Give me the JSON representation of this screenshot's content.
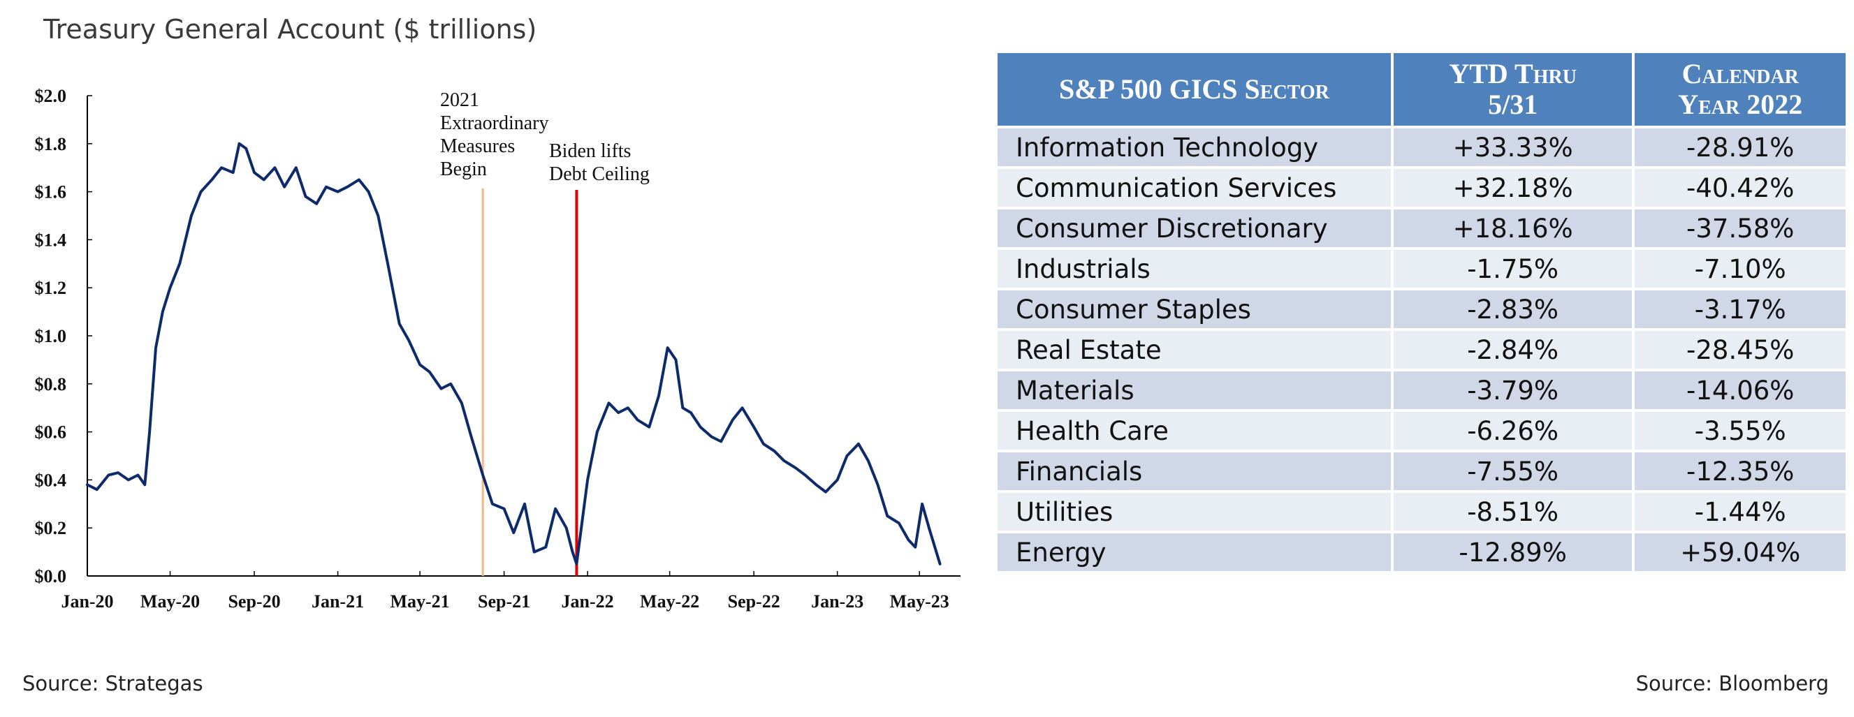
{
  "chart_title": "Treasury General Account ($ trillions)",
  "chart_data": {
    "type": "line",
    "title": "Treasury General Account ($ trillions)",
    "ylim": [
      0,
      2.0
    ],
    "y_ticks": [
      "$0.0",
      "$0.2",
      "$0.4",
      "$0.6",
      "$0.8",
      "$1.0",
      "$1.2",
      "$1.4",
      "$1.6",
      "$1.8",
      "$2.0"
    ],
    "x_ticks": [
      "Jan-20",
      "May-20",
      "Sep-20",
      "Jan-21",
      "May-21",
      "Sep-21",
      "Jan-22",
      "May-22",
      "Sep-22",
      "Jan-23",
      "May-23"
    ],
    "color": "#0d2a6b",
    "series": [
      {
        "x": [
          "2020-01-01",
          "2020-01-15",
          "2020-02-01",
          "2020-02-15",
          "2020-03-01",
          "2020-03-15",
          "2020-03-25",
          "2020-04-01",
          "2020-04-10",
          "2020-04-20",
          "2020-05-01",
          "2020-05-15",
          "2020-06-01",
          "2020-06-15",
          "2020-07-01",
          "2020-07-15",
          "2020-08-01",
          "2020-08-10",
          "2020-08-20",
          "2020-09-01",
          "2020-09-15",
          "2020-10-01",
          "2020-10-15",
          "2020-11-01",
          "2020-11-15",
          "2020-12-01",
          "2020-12-15",
          "2021-01-01",
          "2021-01-15",
          "2021-02-01",
          "2021-02-15",
          "2021-03-01",
          "2021-03-15",
          "2021-04-01",
          "2021-04-15",
          "2021-05-01",
          "2021-05-15",
          "2021-06-01",
          "2021-06-15",
          "2021-07-01",
          "2021-07-15",
          "2021-08-01",
          "2021-08-15",
          "2021-09-01",
          "2021-09-15",
          "2021-10-01",
          "2021-10-15",
          "2021-11-01",
          "2021-11-15",
          "2021-12-01",
          "2021-12-10",
          "2021-12-16",
          "2022-01-01",
          "2022-01-15",
          "2022-02-01",
          "2022-02-15",
          "2022-03-01",
          "2022-03-15",
          "2022-04-01",
          "2022-04-15",
          "2022-04-28",
          "2022-05-10",
          "2022-05-20",
          "2022-06-01",
          "2022-06-15",
          "2022-07-01",
          "2022-07-15",
          "2022-08-01",
          "2022-08-15",
          "2022-09-01",
          "2022-09-15",
          "2022-10-01",
          "2022-10-15",
          "2022-11-01",
          "2022-11-15",
          "2022-12-01",
          "2022-12-15",
          "2023-01-01",
          "2023-01-15",
          "2023-02-01",
          "2023-02-15",
          "2023-03-01",
          "2023-03-15",
          "2023-04-01",
          "2023-04-15",
          "2023-04-25",
          "2023-05-05",
          "2023-05-15",
          "2023-05-31"
        ],
        "y": [
          0.38,
          0.36,
          0.42,
          0.43,
          0.4,
          0.42,
          0.38,
          0.6,
          0.95,
          1.1,
          1.2,
          1.3,
          1.5,
          1.6,
          1.65,
          1.7,
          1.68,
          1.8,
          1.78,
          1.68,
          1.65,
          1.7,
          1.62,
          1.7,
          1.58,
          1.55,
          1.62,
          1.6,
          1.62,
          1.65,
          1.6,
          1.5,
          1.3,
          1.05,
          0.98,
          0.88,
          0.85,
          0.78,
          0.8,
          0.72,
          0.58,
          0.42,
          0.3,
          0.28,
          0.18,
          0.3,
          0.1,
          0.12,
          0.28,
          0.2,
          0.1,
          0.05,
          0.4,
          0.6,
          0.72,
          0.68,
          0.7,
          0.65,
          0.62,
          0.75,
          0.95,
          0.9,
          0.7,
          0.68,
          0.62,
          0.58,
          0.56,
          0.65,
          0.7,
          0.62,
          0.55,
          0.52,
          0.48,
          0.45,
          0.42,
          0.38,
          0.35,
          0.4,
          0.5,
          0.55,
          0.48,
          0.38,
          0.25,
          0.22,
          0.15,
          0.12,
          0.3,
          0.2,
          0.05
        ]
      }
    ],
    "annotations": [
      {
        "date": "2021-08-01",
        "label": "2021 Extraordinary Measures Begin",
        "color": "#f7b57f"
      },
      {
        "date": "2021-12-16",
        "label": "Biden lifts Debt Ceiling",
        "color": "#e00000"
      }
    ]
  },
  "table": {
    "headers": {
      "sector": "S&P 500 GICS Sector",
      "ytd_line1": "YTD Thru",
      "ytd_line2": "5/31",
      "cal_line1": "Calendar",
      "cal_line2": "Year 2022"
    },
    "rows": [
      {
        "sector": "Information Technology",
        "ytd": "+33.33%",
        "cal": "-28.91%"
      },
      {
        "sector": "Communication Services",
        "ytd": "+32.18%",
        "cal": "-40.42%"
      },
      {
        "sector": "Consumer Discretionary",
        "ytd": "+18.16%",
        "cal": "-37.58%"
      },
      {
        "sector": "Industrials",
        "ytd": "-1.75%",
        "cal": "-7.10%"
      },
      {
        "sector": "Consumer Staples",
        "ytd": "-2.83%",
        "cal": "-3.17%"
      },
      {
        "sector": "Real Estate",
        "ytd": "-2.84%",
        "cal": "-28.45%"
      },
      {
        "sector": "Materials",
        "ytd": "-3.79%",
        "cal": "-14.06%"
      },
      {
        "sector": "Health Care",
        "ytd": "-6.26%",
        "cal": "-3.55%"
      },
      {
        "sector": "Financials",
        "ytd": "-7.55%",
        "cal": "-12.35%"
      },
      {
        "sector": "Utilities",
        "ytd": "-8.51%",
        "cal": "-1.44%"
      },
      {
        "sector": "Energy",
        "ytd": "-12.89%",
        "cal": "+59.04%"
      }
    ]
  },
  "sources": {
    "left": "Source:  Strategas",
    "right": "Source: Bloomberg"
  }
}
